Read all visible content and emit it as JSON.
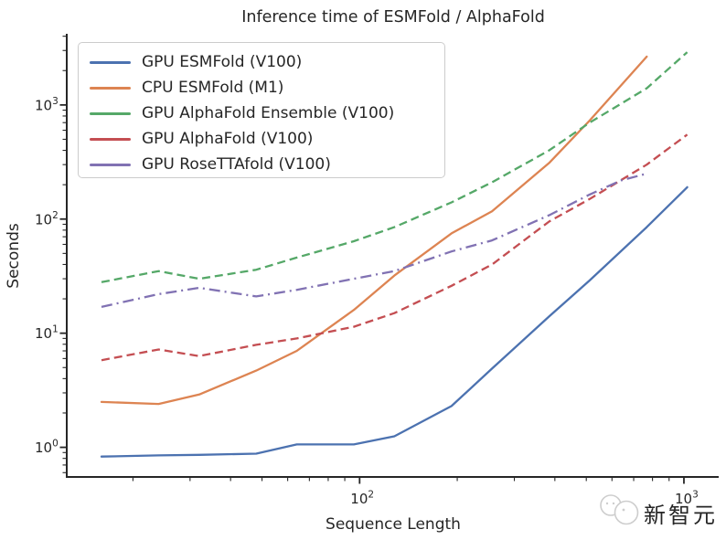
{
  "title": "Inference time of ESMFold / AlphaFold",
  "watermark": {
    "text": "新智元"
  },
  "chart_data": {
    "type": "line",
    "title": "Inference time of ESMFold / AlphaFold",
    "xlabel": "Sequence Length",
    "ylabel": "Seconds",
    "x_scale": "log",
    "y_scale": "log",
    "xlim": [
      12.5,
      1280
    ],
    "ylim": [
      0.55,
      4200
    ],
    "x_ticks": [
      100,
      1000
    ],
    "y_ticks": [
      1,
      10,
      100,
      1000
    ],
    "grid": false,
    "legend_position": "upper left",
    "series": [
      {
        "name": "GPU ESMFold (V100)",
        "color": "#4c72b0",
        "style": "solid",
        "x": [
          16,
          24,
          32,
          48,
          64,
          96,
          128,
          192,
          256,
          384,
          512,
          768,
          1024
        ],
        "y": [
          0.83,
          0.85,
          0.86,
          0.88,
          1.06,
          1.06,
          1.25,
          2.3,
          4.9,
          14,
          29,
          85,
          190
        ]
      },
      {
        "name": "CPU ESMFold (M1)",
        "color": "#dd8452",
        "style": "solid",
        "x": [
          16,
          24,
          32,
          48,
          64,
          96,
          128,
          192,
          256,
          384,
          512,
          768
        ],
        "y": [
          2.5,
          2.4,
          2.9,
          4.7,
          7.0,
          16,
          32,
          75,
          117,
          310,
          730,
          2650
        ]
      },
      {
        "name": "GPU AlphaFold Ensemble (V100)",
        "color": "#55a868",
        "style": "dashed",
        "x": [
          16,
          24,
          32,
          48,
          64,
          96,
          128,
          192,
          256,
          384,
          512,
          768,
          1024
        ],
        "y": [
          28,
          35,
          30,
          36,
          46,
          64,
          85,
          140,
          210,
          400,
          700,
          1400,
          2900
        ]
      },
      {
        "name": "GPU AlphaFold (V100)",
        "color": "#c44e52",
        "style": "dashed",
        "x": [
          16,
          24,
          32,
          48,
          64,
          96,
          128,
          192,
          256,
          384,
          512,
          768,
          1024
        ],
        "y": [
          5.8,
          7.2,
          6.3,
          7.9,
          9.0,
          11.4,
          15,
          26,
          40,
          95,
          150,
          300,
          550
        ]
      },
      {
        "name": "GPU RoseTTAfold (V100)",
        "color": "#8172b3",
        "style": "dashdot",
        "x": [
          16,
          24,
          32,
          48,
          64,
          96,
          128,
          192,
          256,
          384,
          512,
          640,
          768
        ],
        "y": [
          17,
          22,
          25,
          21,
          24,
          30,
          35,
          52,
          65,
          108,
          164,
          218,
          250
        ]
      }
    ]
  }
}
